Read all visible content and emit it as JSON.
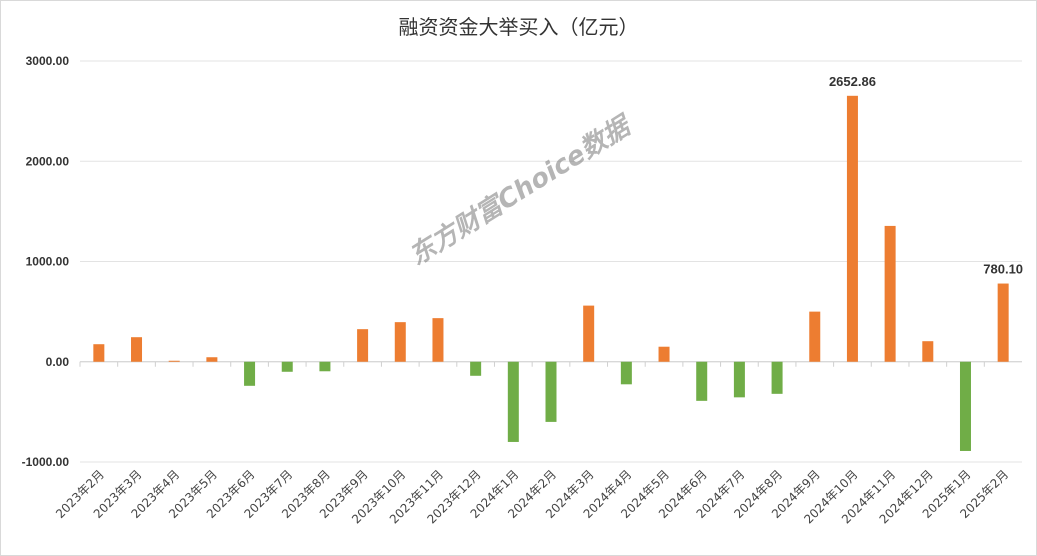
{
  "chart_data": {
    "type": "bar",
    "title": "融资资金大举买入（亿元）",
    "categories": [
      "2023年2月",
      "2023年3月",
      "2023年4月",
      "2023年5月",
      "2023年6月",
      "2023年7月",
      "2023年8月",
      "2023年9月",
      "2023年10月",
      "2023年11月",
      "2023年12月",
      "2024年1月",
      "2024年2月",
      "2024年3月",
      "2024年4月",
      "2024年5月",
      "2024年6月",
      "2024年7月",
      "2024年8月",
      "2024年9月",
      "2024年10月",
      "2024年11月",
      "2024年12月",
      "2025年1月",
      "2025年2月"
    ],
    "values": [
      175,
      245,
      10,
      45,
      -240,
      -100,
      -95,
      325,
      395,
      435,
      -140,
      -800,
      -600,
      560,
      -225,
      150,
      -390,
      -355,
      -320,
      500,
      2652.86,
      1355,
      205,
      -890,
      780.1
    ],
    "data_labels": {
      "20": "2652.86",
      "24": "780.10"
    },
    "ylim": [
      -1000,
      3000
    ],
    "yticks": [
      "-1000.00",
      "0.00",
      "1000.00",
      "2000.00",
      "3000.00"
    ],
    "grid": true,
    "colors": {
      "positive": "#ED7D31",
      "negative": "#70AD47"
    },
    "watermark": "东方财富Choice数据"
  }
}
